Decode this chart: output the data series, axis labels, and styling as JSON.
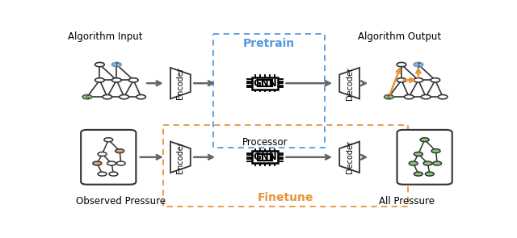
{
  "bg_color": "#ffffff",
  "pretrain_box_color": "#5599dd",
  "finetune_box_color": "#e8923a",
  "top_label": "Pretrain",
  "bottom_label": "Finetune",
  "algo_input_label": "Algorithm Input",
  "algo_output_label": "Algorithm Output",
  "observed_pressure_label": "Observed Pressure",
  "all_pressure_label": "All Pressure",
  "processor_label": "Processor",
  "encoder_label": "Encoder",
  "decoder_label": "Decoder",
  "gnn_label": "GNN",
  "node_color_white": "#ffffff",
  "node_color_green": "#8dc87a",
  "node_color_blue": "#88bbd8",
  "node_color_orange": "#e8a07a",
  "edge_color_black": "#333333",
  "edge_color_orange": "#e8923a",
  "arrow_color": "#666666",
  "figw": 6.4,
  "figh": 2.95,
  "dpi": 100
}
